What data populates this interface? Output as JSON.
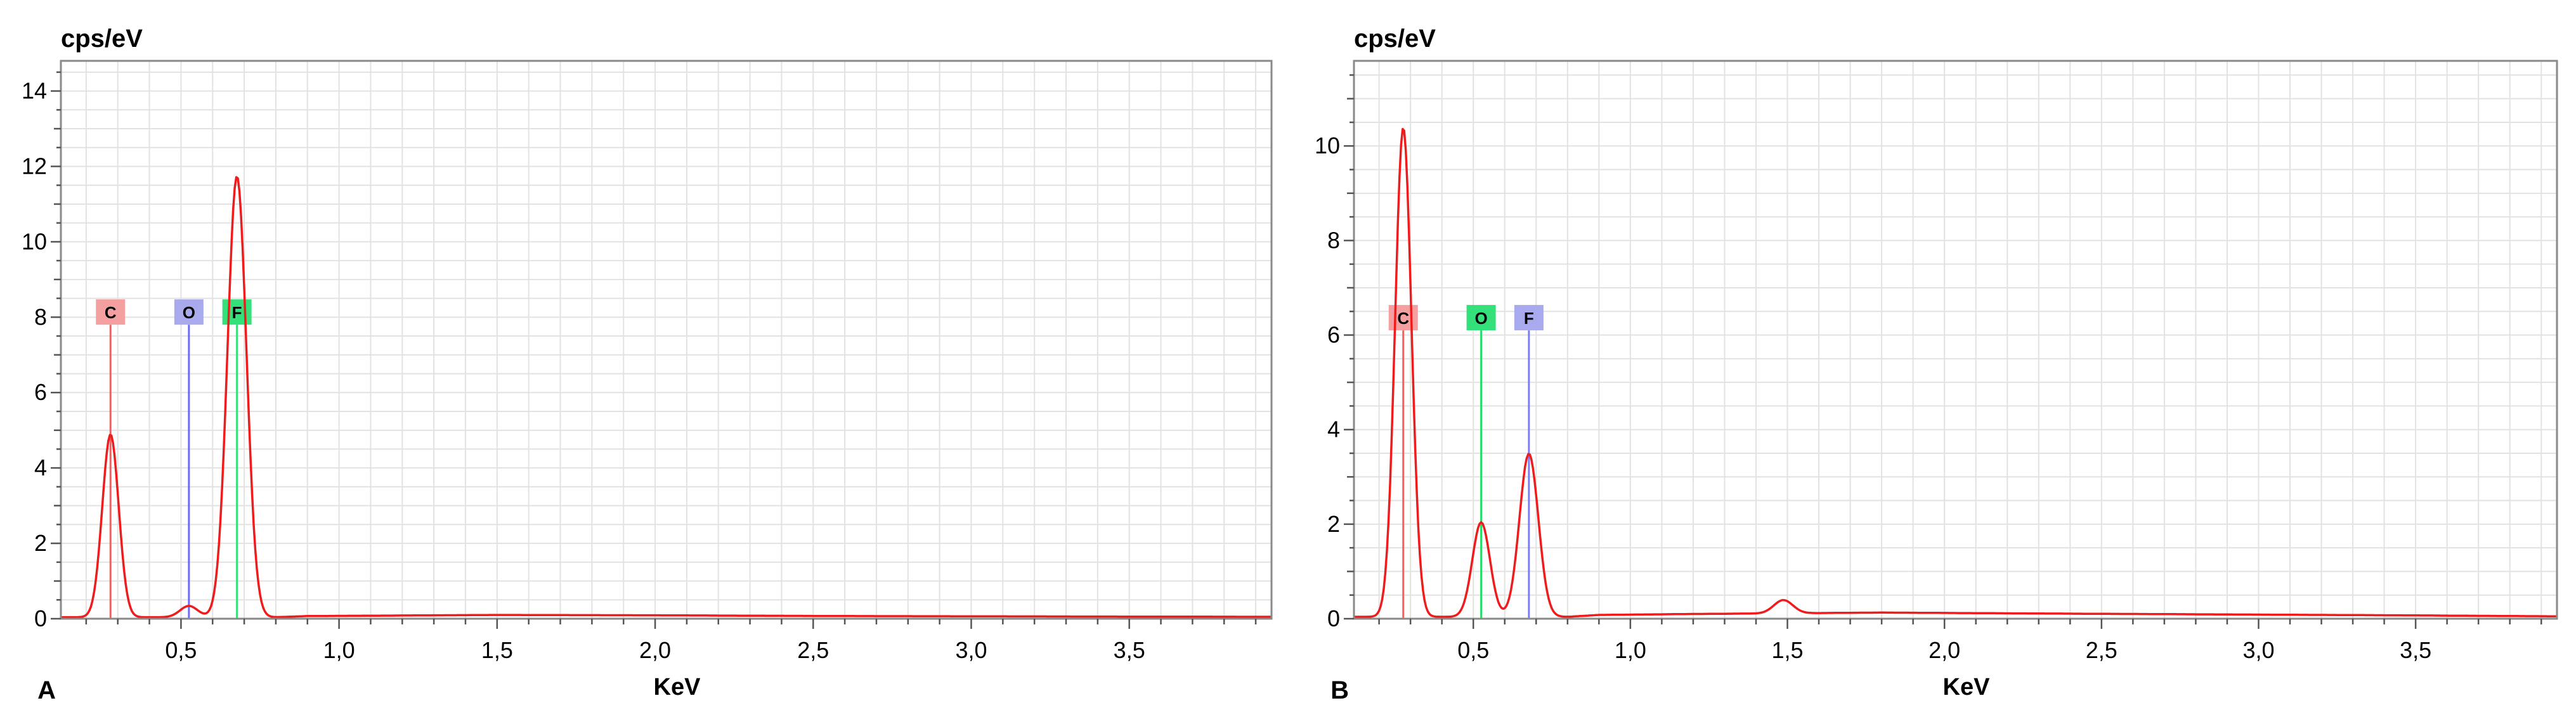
{
  "chart_data": [
    {
      "type": "line",
      "panel_label": "A",
      "ylabel": "cps/eV",
      "xlabel": "KeV",
      "xlim": [
        0.12,
        3.95
      ],
      "ylim": [
        0,
        14.8
      ],
      "x_ticks": [
        0.5,
        1.0,
        1.5,
        2.0,
        2.5,
        3.0,
        3.5
      ],
      "x_tick_labels": [
        "0,5",
        "1,0",
        "1,5",
        "2,0",
        "2,5",
        "3,0",
        "3,5"
      ],
      "y_ticks": [
        0,
        2,
        4,
        6,
        8,
        10,
        12,
        14
      ],
      "y_tick_labels": [
        "0",
        "2",
        "4",
        "6",
        "8",
        "10",
        "12",
        "14"
      ],
      "grid": true,
      "baseline": 0.04,
      "tail": [
        [
          0.9,
          0.07
        ],
        [
          1.5,
          0.1
        ],
        [
          2.0,
          0.09
        ],
        [
          2.6,
          0.07
        ],
        [
          3.2,
          0.06
        ],
        [
          3.95,
          0.05
        ]
      ],
      "peaks": [
        {
          "energy": 0.277,
          "height": 4.85,
          "sigma": 0.026
        },
        {
          "energy": 0.525,
          "height": 0.3,
          "sigma": 0.028
        },
        {
          "energy": 0.677,
          "height": 11.7,
          "sigma": 0.03
        }
      ],
      "element_markers": [
        {
          "label": "C",
          "energy": 0.277,
          "line_top": 7.8,
          "color": "#ff5a5a",
          "box_color": "#f4a0a0"
        },
        {
          "label": "O",
          "energy": 0.525,
          "line_top": 7.8,
          "color": "#6b6bff",
          "box_color": "#a9a9ee"
        },
        {
          "label": "F",
          "energy": 0.677,
          "line_top": 7.8,
          "color": "#33e07a",
          "box_color": "#33e07a"
        }
      ],
      "series": [
        {
          "color": "#ee1c1c",
          "values": []
        }
      ]
    },
    {
      "type": "line",
      "panel_label": "B",
      "ylabel": "cps/eV",
      "xlabel": "KeV",
      "xlim": [
        0.12,
        3.95
      ],
      "ylim": [
        0,
        11.8
      ],
      "x_ticks": [
        0.5,
        1.0,
        1.5,
        2.0,
        2.5,
        3.0,
        3.5
      ],
      "x_tick_labels": [
        "0,5",
        "1,0",
        "1,5",
        "2,0",
        "2,5",
        "3,0",
        "3,5"
      ],
      "y_ticks": [
        0,
        2,
        4,
        6,
        8,
        10
      ],
      "y_tick_labels": [
        "0",
        "2",
        "4",
        "6",
        "8",
        "10"
      ],
      "grid": true,
      "baseline": 0.04,
      "tail": [
        [
          0.9,
          0.08
        ],
        [
          1.2,
          0.1
        ],
        [
          1.8,
          0.13
        ],
        [
          2.3,
          0.11
        ],
        [
          2.9,
          0.09
        ],
        [
          3.5,
          0.07
        ],
        [
          3.95,
          0.05
        ]
      ],
      "peaks": [
        {
          "energy": 0.277,
          "height": 10.35,
          "sigma": 0.026
        },
        {
          "energy": 0.525,
          "height": 2.0,
          "sigma": 0.028
        },
        {
          "energy": 0.677,
          "height": 3.45,
          "sigma": 0.03
        },
        {
          "energy": 1.487,
          "height": 0.28,
          "sigma": 0.03
        }
      ],
      "element_markers": [
        {
          "label": "C",
          "energy": 0.277,
          "line_top": 6.1,
          "color": "#ff5a5a",
          "box_color": "#f4a0a0"
        },
        {
          "label": "O",
          "energy": 0.525,
          "line_top": 6.1,
          "color": "#22dd66",
          "box_color": "#33e07a"
        },
        {
          "label": "F",
          "energy": 0.677,
          "line_top": 6.1,
          "color": "#7b7bff",
          "box_color": "#a9a9ee"
        }
      ],
      "series": [
        {
          "color": "#ee1c1c",
          "values": []
        }
      ]
    }
  ]
}
